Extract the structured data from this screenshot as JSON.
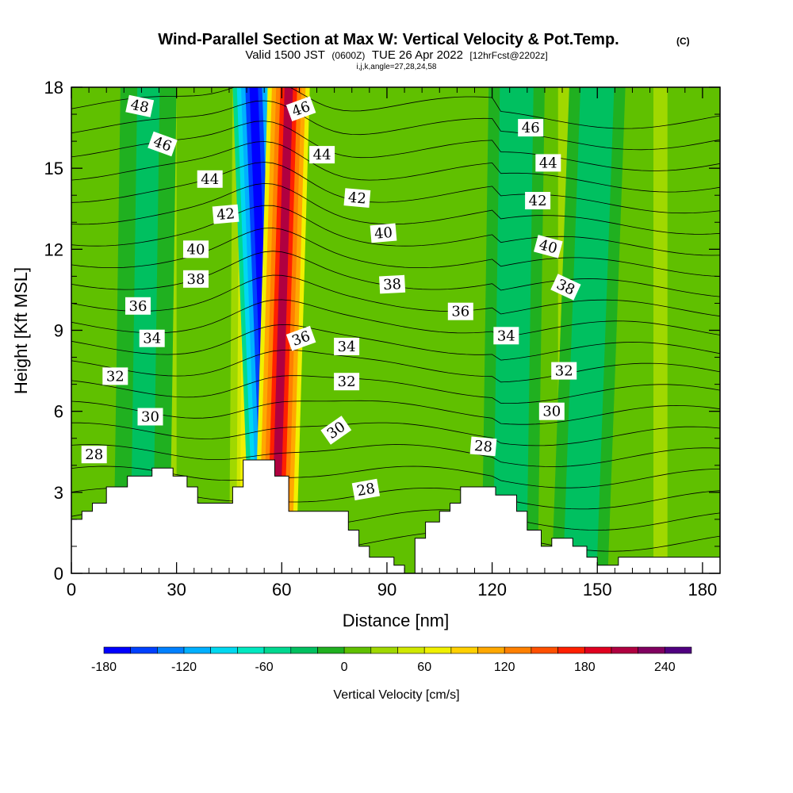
{
  "chart_data": {
    "type": "heatmap",
    "title": "Wind-Parallel Section at Max W: Vertical Velocity & Pot.Temp.",
    "copyright_mark": "(C)",
    "subtitle_prefix": "Valid 1500 JST",
    "subtitle_utc": "(0600Z)",
    "subtitle_date": "TUE 26 Apr 2022",
    "subtitle_fcst": "[12hrFcst@2202z]",
    "subtitle2": "i,j,k,angle=27,28,24,58",
    "xlabel": "Distance [nm]",
    "ylabel": "Height [Kft MSL]",
    "xlim": [
      0,
      185
    ],
    "ylim": [
      0,
      18
    ],
    "x_ticks": [
      "0",
      "30",
      "60",
      "90",
      "120",
      "150",
      "180"
    ],
    "y_ticks": [
      "0",
      "3",
      "6",
      "9",
      "12",
      "15",
      "18"
    ],
    "colorbar": {
      "label": "Vertical Velocity [cm/s]",
      "tick_labels": [
        "-180",
        "-120",
        "-60",
        "0",
        "60",
        "120",
        "180",
        "240"
      ],
      "range": [
        -180,
        260
      ],
      "colors": [
        "#0000ff",
        "#0040ff",
        "#0080ff",
        "#00b0ff",
        "#00d8f0",
        "#00e8c0",
        "#00d890",
        "#00c060",
        "#20b020",
        "#60c000",
        "#a0d800",
        "#d0e800",
        "#f0f000",
        "#ffd000",
        "#ffa800",
        "#ff8000",
        "#ff5000",
        "#ff2000",
        "#e00020",
        "#b00040",
        "#800060",
        "#500080"
      ]
    },
    "contour_labels": [
      {
        "text": "48",
        "x": 19.5,
        "y": 17.3,
        "angle": 12
      },
      {
        "text": "46",
        "x": 26.0,
        "y": 15.9,
        "angle": 20
      },
      {
        "text": "44",
        "x": 39.5,
        "y": 14.6,
        "angle": 0
      },
      {
        "text": "42",
        "x": 44.0,
        "y": 13.3,
        "angle": -5
      },
      {
        "text": "40",
        "x": 35.5,
        "y": 12.0,
        "angle": 0
      },
      {
        "text": "38",
        "x": 35.5,
        "y": 10.9,
        "angle": 0
      },
      {
        "text": "36",
        "x": 19.0,
        "y": 9.9,
        "angle": 0
      },
      {
        "text": "34",
        "x": 23.0,
        "y": 8.7,
        "angle": 0
      },
      {
        "text": "32",
        "x": 12.5,
        "y": 7.3,
        "angle": 0
      },
      {
        "text": "30",
        "x": 22.5,
        "y": 5.8,
        "angle": 0
      },
      {
        "text": "28",
        "x": 6.5,
        "y": 4.4,
        "angle": 0
      },
      {
        "text": "46",
        "x": 65.5,
        "y": 17.2,
        "angle": -20
      },
      {
        "text": "44",
        "x": 71.5,
        "y": 15.5,
        "angle": 0
      },
      {
        "text": "42",
        "x": 81.5,
        "y": 13.9,
        "angle": 5
      },
      {
        "text": "40",
        "x": 89.0,
        "y": 12.6,
        "angle": -5
      },
      {
        "text": "38",
        "x": 91.5,
        "y": 10.7,
        "angle": -3
      },
      {
        "text": "36",
        "x": 65.5,
        "y": 8.7,
        "angle": -20
      },
      {
        "text": "34",
        "x": 78.5,
        "y": 8.4,
        "angle": 0
      },
      {
        "text": "32",
        "x": 78.5,
        "y": 7.1,
        "angle": 0
      },
      {
        "text": "30",
        "x": 75.5,
        "y": 5.3,
        "angle": -35
      },
      {
        "text": "28",
        "x": 84.0,
        "y": 3.1,
        "angle": -10
      },
      {
        "text": "36",
        "x": 111.0,
        "y": 9.7,
        "angle": 0
      },
      {
        "text": "28",
        "x": 117.5,
        "y": 4.7,
        "angle": 5
      },
      {
        "text": "46",
        "x": 131.0,
        "y": 16.5,
        "angle": 0
      },
      {
        "text": "44",
        "x": 136.0,
        "y": 15.2,
        "angle": 0
      },
      {
        "text": "42",
        "x": 133.0,
        "y": 13.8,
        "angle": 0
      },
      {
        "text": "40",
        "x": 136.0,
        "y": 12.1,
        "angle": 15
      },
      {
        "text": "38",
        "x": 141.0,
        "y": 10.6,
        "angle": 25
      },
      {
        "text": "34",
        "x": 124.0,
        "y": 8.8,
        "angle": 0
      },
      {
        "text": "32",
        "x": 140.5,
        "y": 7.5,
        "angle": 0
      },
      {
        "text": "30",
        "x": 137.0,
        "y": 6.0,
        "angle": 0
      }
    ],
    "theta_left_lowest": 28,
    "theta_top": 48,
    "terrain_height": [
      {
        "x": 0,
        "h": 1.0
      },
      {
        "x": 0,
        "h": 2.0
      },
      {
        "x": 3,
        "h": 2.0
      },
      {
        "x": 3,
        "h": 2.3
      },
      {
        "x": 6,
        "h": 2.3
      },
      {
        "x": 6,
        "h": 2.6
      },
      {
        "x": 10,
        "h": 2.6
      },
      {
        "x": 10,
        "h": 3.2
      },
      {
        "x": 16,
        "h": 3.2
      },
      {
        "x": 16,
        "h": 3.6
      },
      {
        "x": 23,
        "h": 3.6
      },
      {
        "x": 23,
        "h": 3.9
      },
      {
        "x": 29,
        "h": 3.9
      },
      {
        "x": 29,
        "h": 3.6
      },
      {
        "x": 33,
        "h": 3.6
      },
      {
        "x": 33,
        "h": 3.2
      },
      {
        "x": 36,
        "h": 3.2
      },
      {
        "x": 36,
        "h": 2.6
      },
      {
        "x": 46,
        "h": 2.6
      },
      {
        "x": 46,
        "h": 3.2
      },
      {
        "x": 49,
        "h": 3.2
      },
      {
        "x": 49,
        "h": 4.2
      },
      {
        "x": 58,
        "h": 4.2
      },
      {
        "x": 58,
        "h": 3.6
      },
      {
        "x": 62,
        "h": 3.6
      },
      {
        "x": 62,
        "h": 2.3
      },
      {
        "x": 79,
        "h": 2.3
      },
      {
        "x": 79,
        "h": 1.6
      },
      {
        "x": 82,
        "h": 1.6
      },
      {
        "x": 82,
        "h": 1.0
      },
      {
        "x": 85,
        "h": 1.0
      },
      {
        "x": 85,
        "h": 0.6
      },
      {
        "x": 92,
        "h": 0.6
      },
      {
        "x": 92,
        "h": 0.3
      },
      {
        "x": 95,
        "h": 0.3
      },
      {
        "x": 95,
        "h": 0.0
      },
      {
        "x": 98,
        "h": 0.0
      },
      {
        "x": 98,
        "h": 1.3
      },
      {
        "x": 101,
        "h": 1.3
      },
      {
        "x": 101,
        "h": 1.9
      },
      {
        "x": 105,
        "h": 1.9
      },
      {
        "x": 105,
        "h": 2.3
      },
      {
        "x": 108,
        "h": 2.3
      },
      {
        "x": 108,
        "h": 2.6
      },
      {
        "x": 111,
        "h": 2.6
      },
      {
        "x": 111,
        "h": 3.2
      },
      {
        "x": 121,
        "h": 3.2
      },
      {
        "x": 121,
        "h": 2.9
      },
      {
        "x": 127,
        "h": 2.9
      },
      {
        "x": 127,
        "h": 2.3
      },
      {
        "x": 130,
        "h": 2.3
      },
      {
        "x": 130,
        "h": 1.6
      },
      {
        "x": 134,
        "h": 1.6
      },
      {
        "x": 134,
        "h": 1.0
      },
      {
        "x": 137,
        "h": 1.0
      },
      {
        "x": 137,
        "h": 1.3
      },
      {
        "x": 143,
        "h": 1.3
      },
      {
        "x": 143,
        "h": 1.0
      },
      {
        "x": 147,
        "h": 1.0
      },
      {
        "x": 147,
        "h": 0.6
      },
      {
        "x": 150,
        "h": 0.6
      },
      {
        "x": 150,
        "h": 0.3
      },
      {
        "x": 156,
        "h": 0.3
      },
      {
        "x": 156,
        "h": 0.6
      },
      {
        "x": 185,
        "h": 0.6
      },
      {
        "x": 185,
        "h": 1.0
      }
    ],
    "vertical_velocity_features": [
      {
        "kind": "updraft-core",
        "x_center_bottom": 58,
        "x_center_top": 62,
        "width": 6,
        "w": 210
      },
      {
        "kind": "downdraft-core",
        "x_center_bottom": 57,
        "x_center_top": 52,
        "width": 6,
        "w": -170
      },
      {
        "kind": "warm-flank",
        "x_center_bottom": 49,
        "x_center_top": 50,
        "width": 5,
        "w": 60
      },
      {
        "kind": "weak-up",
        "x_center_bottom": 142,
        "x_center_top": 142,
        "width": 8,
        "w": 30
      },
      {
        "kind": "weak-up",
        "x_center_bottom": 28,
        "x_center_top": 28,
        "width": 10,
        "w": 20
      },
      {
        "kind": "weak-up",
        "x_center_bottom": 168,
        "x_center_top": 168,
        "width": 10,
        "w": 20
      },
      {
        "kind": "weak-down",
        "x_center_bottom": 125,
        "x_center_top": 127,
        "width": 8,
        "w": -40
      },
      {
        "kind": "weak-down",
        "x_center_bottom": 145,
        "x_center_top": 150,
        "width": 8,
        "w": -40
      },
      {
        "kind": "weak-down",
        "x_center_bottom": 20,
        "x_center_top": 22,
        "width": 8,
        "w": -30
      }
    ]
  }
}
